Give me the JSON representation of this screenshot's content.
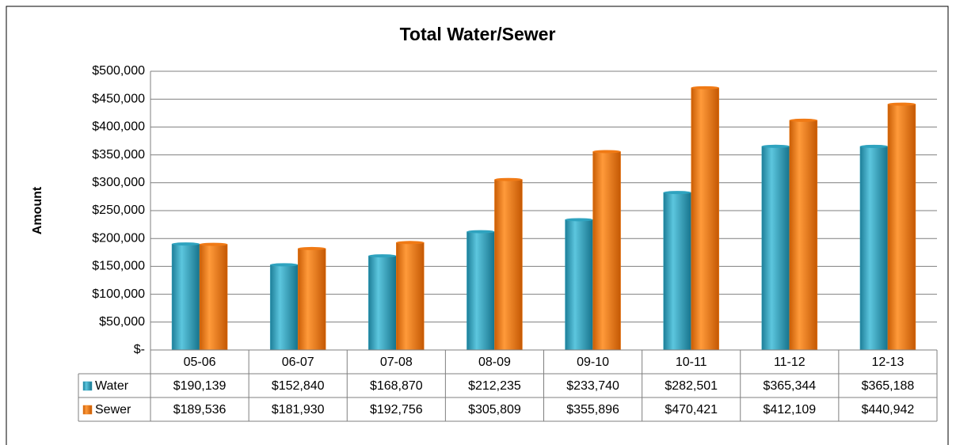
{
  "chart_data": {
    "type": "bar",
    "title": "Total Water/Sewer",
    "y_label": "Amount",
    "categories": [
      "05-06",
      "06-07",
      "07-08",
      "08-09",
      "09-10",
      "10-11",
      "11-12",
      "12-13"
    ],
    "series": [
      {
        "name": "Water",
        "color": "#2fa3bf",
        "values": [
          190139,
          152840,
          168870,
          212235,
          233740,
          282501,
          365344,
          365188
        ],
        "value_labels": [
          "$190,139",
          "$152,840",
          "$168,870",
          "$212,235",
          "$233,740",
          "$282,501",
          "$365,344",
          "$365,188"
        ]
      },
      {
        "name": "Sewer",
        "color": "#f07a15",
        "values": [
          189536,
          181930,
          192756,
          305809,
          355896,
          470421,
          412109,
          440942
        ],
        "value_labels": [
          "$189,536",
          "$181,930",
          "$192,756",
          "$305,809",
          "$355,896",
          "$470,421",
          "$412,109",
          "$440,942"
        ]
      }
    ],
    "ylim": [
      0,
      500000
    ],
    "yticks": [
      {
        "value": 0,
        "label": "$-"
      },
      {
        "value": 50000,
        "label": "$50,000"
      },
      {
        "value": 100000,
        "label": "$100,000"
      },
      {
        "value": 150000,
        "label": "$150,000"
      },
      {
        "value": 200000,
        "label": "$200,000"
      },
      {
        "value": 250000,
        "label": "$250,000"
      },
      {
        "value": 300000,
        "label": "$300,000"
      },
      {
        "value": 350000,
        "label": "$350,000"
      },
      {
        "value": 400000,
        "label": "$400,000"
      },
      {
        "value": 450000,
        "label": "$450,000"
      },
      {
        "value": 500000,
        "label": "$500,000"
      }
    ],
    "grid": true,
    "data_table": true
  }
}
